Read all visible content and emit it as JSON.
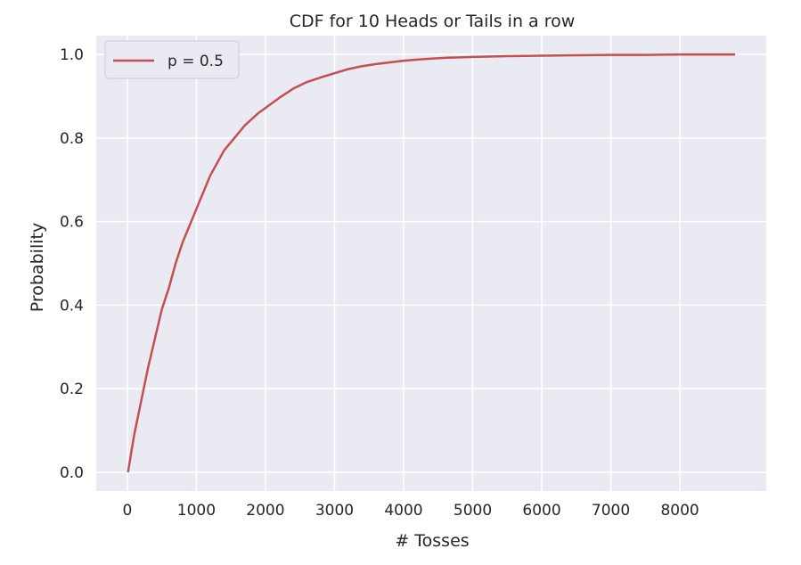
{
  "chart_data": {
    "type": "line",
    "title": "CDF for 10 Heads or Tails in a row",
    "xlabel": "# Tosses",
    "ylabel": "Probability",
    "xlim": [
      -450,
      9250
    ],
    "ylim": [
      -0.045,
      1.045
    ],
    "xticks": [
      0,
      1000,
      2000,
      3000,
      4000,
      5000,
      6000,
      7000,
      8000
    ],
    "yticks": [
      0.0,
      0.2,
      0.4,
      0.6,
      0.8,
      1.0
    ],
    "xtick_labels": [
      "0",
      "1000",
      "2000",
      "3000",
      "4000",
      "5000",
      "6000",
      "7000",
      "8000"
    ],
    "ytick_labels": [
      "0.0",
      "0.2",
      "0.4",
      "0.6",
      "0.8",
      "1.0"
    ],
    "grid": true,
    "legend_position": "top-left",
    "colors": {
      "background": "#eaeaf2",
      "grid": "#ffffff",
      "line": "#c44e52"
    },
    "series": [
      {
        "name": "p = 0.5",
        "x": [
          10,
          100,
          200,
          300,
          400,
          500,
          600,
          700,
          800,
          900,
          1000,
          1100,
          1200,
          1300,
          1400,
          1500,
          1600,
          1700,
          1800,
          1900,
          2000,
          2200,
          2400,
          2600,
          2800,
          3000,
          3200,
          3400,
          3600,
          3800,
          4000,
          4300,
          4600,
          5000,
          5500,
          6000,
          6500,
          7000,
          7500,
          8000,
          8500,
          8800
        ],
        "y": [
          0.0,
          0.09,
          0.17,
          0.25,
          0.32,
          0.39,
          0.44,
          0.5,
          0.55,
          0.59,
          0.63,
          0.67,
          0.71,
          0.74,
          0.77,
          0.79,
          0.81,
          0.83,
          0.845,
          0.86,
          0.872,
          0.896,
          0.918,
          0.934,
          0.945,
          0.955,
          0.965,
          0.972,
          0.977,
          0.981,
          0.985,
          0.989,
          0.992,
          0.994,
          0.996,
          0.997,
          0.998,
          0.999,
          0.999,
          1.0,
          1.0,
          1.0
        ]
      }
    ]
  }
}
